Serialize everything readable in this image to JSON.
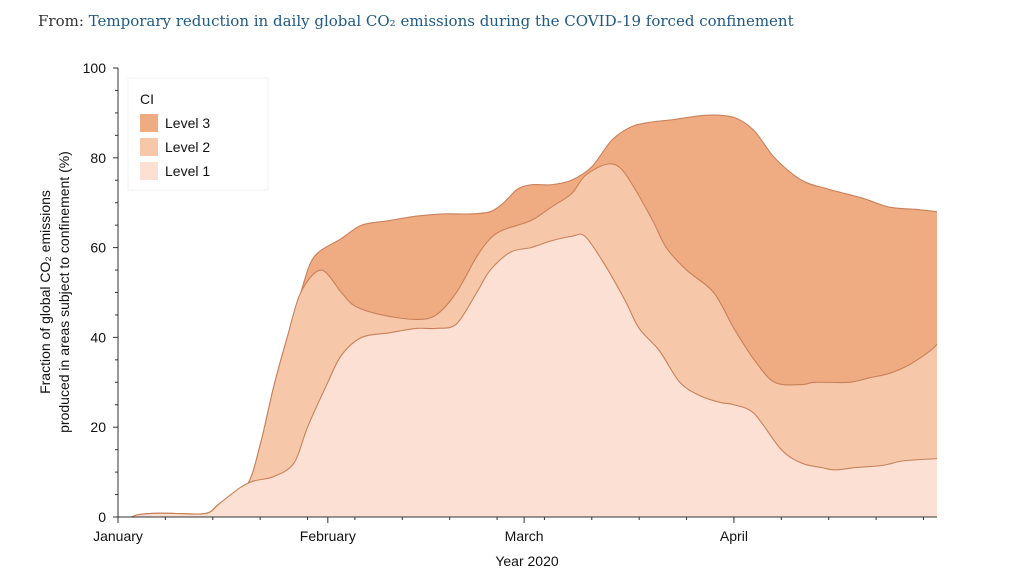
{
  "caption": {
    "prefix": "From: ",
    "title": "Temporary reduction in daily global CO₂ emissions during the COVID-19 forced confinement"
  },
  "colors": {
    "level1": "#fbe0d3",
    "level2": "#f6c8a9",
    "level3": "#efac82",
    "outline": "#c9805a",
    "axis": "#333333",
    "link": "#1f5a86"
  },
  "chart_data": {
    "type": "area",
    "stacked": false,
    "title": "",
    "xlabel": "Year 2020",
    "ylabel_line1": "Fraction of global CO₂ emissions",
    "ylabel_line2": "produced in areas subject to confinement (%)",
    "xlim": [
      0,
      121
    ],
    "ylim": [
      0,
      100
    ],
    "y_ticks": [
      0,
      20,
      40,
      60,
      80,
      100
    ],
    "x_ticks": [
      {
        "x": 0,
        "label": "January"
      },
      {
        "x": 31,
        "label": "February"
      },
      {
        "x": 60,
        "label": "March"
      },
      {
        "x": 91,
        "label": "April"
      }
    ],
    "legend": {
      "title": "CI",
      "position": "top-left"
    },
    "series": [
      {
        "name": "Level 3",
        "color": "#efac82",
        "points": [
          [
            2,
            0
          ],
          [
            3,
            0.5
          ],
          [
            5,
            0.8
          ],
          [
            8,
            0.8
          ],
          [
            13,
            0.8
          ],
          [
            15,
            3
          ],
          [
            19,
            7
          ],
          [
            21,
            16
          ],
          [
            23,
            29
          ],
          [
            25,
            40
          ],
          [
            27,
            50
          ],
          [
            29,
            58
          ],
          [
            33,
            62
          ],
          [
            36,
            65
          ],
          [
            40,
            66
          ],
          [
            44,
            67
          ],
          [
            48,
            67.5
          ],
          [
            52,
            67.5
          ],
          [
            55,
            68
          ],
          [
            57,
            70
          ],
          [
            59,
            73
          ],
          [
            61,
            74
          ],
          [
            64,
            74
          ],
          [
            67,
            75
          ],
          [
            70,
            78
          ],
          [
            73,
            84
          ],
          [
            76,
            87
          ],
          [
            79,
            88
          ],
          [
            82,
            88.5
          ],
          [
            87,
            89.5
          ],
          [
            91,
            89
          ],
          [
            94,
            86
          ],
          [
            97,
            80
          ],
          [
            101,
            75
          ],
          [
            105,
            73
          ],
          [
            110,
            71
          ],
          [
            114,
            69
          ],
          [
            118,
            68.5
          ],
          [
            121,
            68
          ]
        ]
      },
      {
        "name": "Level 2",
        "color": "#f6c8a9",
        "points": [
          [
            2,
            0
          ],
          [
            3,
            0.5
          ],
          [
            5,
            0.8
          ],
          [
            8,
            0.8
          ],
          [
            13,
            0.8
          ],
          [
            15,
            3
          ],
          [
            19,
            7
          ],
          [
            21,
            16
          ],
          [
            23,
            29
          ],
          [
            25,
            40
          ],
          [
            27,
            50
          ],
          [
            30,
            55
          ],
          [
            33,
            50
          ],
          [
            35,
            47
          ],
          [
            39,
            45
          ],
          [
            44,
            44
          ],
          [
            47,
            45
          ],
          [
            50,
            50
          ],
          [
            53,
            58
          ],
          [
            55,
            62
          ],
          [
            57,
            64
          ],
          [
            61,
            66
          ],
          [
            64,
            69
          ],
          [
            67,
            72
          ],
          [
            69,
            76
          ],
          [
            72,
            78.5
          ],
          [
            74,
            78
          ],
          [
            76,
            74
          ],
          [
            79,
            66
          ],
          [
            81,
            60
          ],
          [
            84,
            55
          ],
          [
            88,
            50
          ],
          [
            91,
            42
          ],
          [
            94,
            35
          ],
          [
            97,
            30
          ],
          [
            101,
            29.5
          ],
          [
            103,
            30
          ],
          [
            108,
            30
          ],
          [
            111,
            31
          ],
          [
            114,
            32
          ],
          [
            117,
            34
          ],
          [
            120,
            37
          ],
          [
            121,
            38.5
          ]
        ]
      },
      {
        "name": "Level 1",
        "color": "#fbe0d3",
        "points": [
          [
            2,
            0
          ],
          [
            3,
            0.5
          ],
          [
            5,
            0.8
          ],
          [
            8,
            0.8
          ],
          [
            13,
            0.8
          ],
          [
            15,
            3
          ],
          [
            18,
            6.5
          ],
          [
            20,
            8
          ],
          [
            23,
            9
          ],
          [
            26,
            12
          ],
          [
            28,
            20
          ],
          [
            31,
            30
          ],
          [
            33,
            36
          ],
          [
            36,
            40
          ],
          [
            40,
            41
          ],
          [
            44,
            42
          ],
          [
            47,
            42
          ],
          [
            50,
            43
          ],
          [
            53,
            50
          ],
          [
            55,
            55
          ],
          [
            58,
            59
          ],
          [
            61,
            60
          ],
          [
            64,
            61.5
          ],
          [
            67,
            62.5
          ],
          [
            69,
            62.5
          ],
          [
            72,
            56
          ],
          [
            75,
            48
          ],
          [
            77,
            42
          ],
          [
            80,
            37
          ],
          [
            83,
            30
          ],
          [
            86,
            27
          ],
          [
            89,
            25.5
          ],
          [
            91,
            25
          ],
          [
            94,
            23
          ],
          [
            98,
            15
          ],
          [
            101,
            12
          ],
          [
            104,
            11
          ],
          [
            106,
            10.5
          ],
          [
            109,
            11
          ],
          [
            113,
            11.5
          ],
          [
            116,
            12.5
          ],
          [
            121,
            13
          ]
        ]
      }
    ]
  }
}
